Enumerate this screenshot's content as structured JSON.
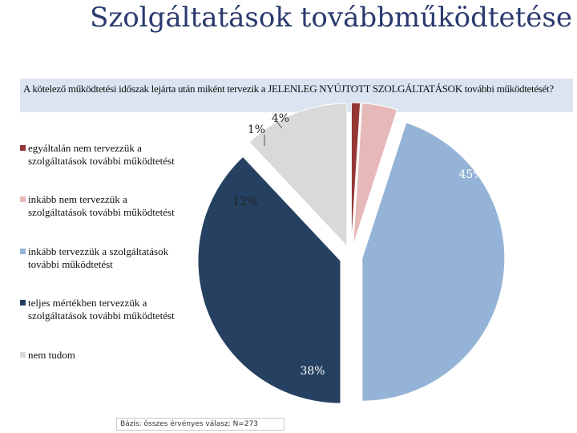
{
  "title": "Szolgáltatások továbbműködtetése",
  "question": "A kötelező működtetési időszak lejárta után miként tervezik a JELENLEG NYÚJTOTT SZOLGÁLTATÁSOK további működtetését?",
  "basis": "Bázis: összes érvényes válasz; N=273",
  "chart_data": {
    "type": "pie",
    "exploded": true,
    "legend_position": "left",
    "categories": [
      "egyáltalán nem tervezzük a szolgáltatások további működtetést",
      "inkább nem tervezzük a szolgáltatások további működtetést",
      "inkább tervezzük a szolgáltatások további működtetést",
      "teljes mértékben tervezzük a szolgáltatások további működtetést",
      "nem tudom"
    ],
    "values": [
      1,
      4,
      45,
      38,
      12
    ],
    "data_labels": [
      "1%",
      "4%",
      "45%",
      "38%",
      "12%"
    ],
    "colors": [
      "#953735",
      "#e6b9b8",
      "#95b3d7",
      "#254061",
      "#d9d9d9"
    ]
  }
}
